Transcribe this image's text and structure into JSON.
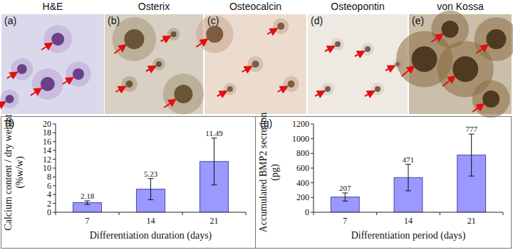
{
  "image_panels": [
    {
      "label": "(a)",
      "title": "H&E"
    },
    {
      "label": "(b)",
      "title": "Osterix"
    },
    {
      "label": "(c)",
      "title": "Osteocalcin"
    },
    {
      "label": "(d)",
      "title": "Osteopontin"
    },
    {
      "label": "(e)",
      "title": "von Kossa"
    }
  ],
  "chart_data": [
    {
      "type": "bar",
      "panel_label": "(f)",
      "x_label": "Differentiation duration (days)",
      "y_label": "Calcium content / dry weight (%w/w)",
      "categories": [
        "7",
        "14",
        "21"
      ],
      "values": [
        2.18,
        5.23,
        11.49
      ],
      "errors": [
        0.4,
        2.4,
        5.3
      ],
      "color": "#9999ff",
      "ylim": [
        0,
        20
      ],
      "yticks": [
        0,
        2,
        4,
        6,
        8,
        10,
        12,
        14,
        16,
        18,
        20
      ],
      "grid": false,
      "data_labels": true
    },
    {
      "type": "bar",
      "panel_label": "(g)",
      "x_label": "Differentiation period (days)",
      "y_label": "Accumulated BMP2 secretion (pg)",
      "categories": [
        "7",
        "14",
        "21"
      ],
      "values": [
        207,
        471,
        777
      ],
      "errors": [
        55,
        180,
        285
      ],
      "color": "#9999ff",
      "ylim": [
        0,
        1200
      ],
      "yticks": [
        0,
        200,
        400,
        600,
        800,
        1000,
        1200
      ],
      "grid": false,
      "data_labels": true
    }
  ]
}
